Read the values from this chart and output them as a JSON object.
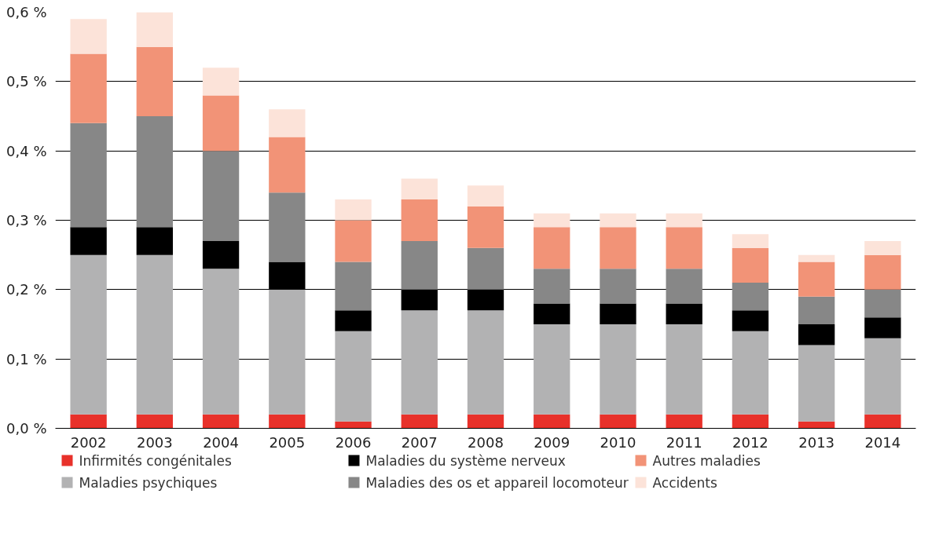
{
  "chart_data": {
    "type": "bar",
    "stacked": true,
    "categories": [
      "2002",
      "2003",
      "2004",
      "2005",
      "2006",
      "2007",
      "2008",
      "2009",
      "2010",
      "2011",
      "2012",
      "2013",
      "2014"
    ],
    "ylim": [
      0,
      0.6
    ],
    "yticks": [
      {
        "value": 0,
        "label": "0,0 %"
      },
      {
        "value": 0.1,
        "label": "0,1 %"
      },
      {
        "value": 0.2,
        "label": "0,2 %"
      },
      {
        "value": 0.3,
        "label": "0,3 %"
      },
      {
        "value": 0.4,
        "label": "0,4 %"
      },
      {
        "value": 0.5,
        "label": "0,5 %"
      },
      {
        "value": 0.6,
        "label": "0,6 %"
      }
    ],
    "grid": "y",
    "legend": "bottom",
    "series": [
      {
        "name": "Infirmités congénitales",
        "color": "#e8312a",
        "values": [
          0.02,
          0.02,
          0.02,
          0.02,
          0.01,
          0.02,
          0.02,
          0.02,
          0.02,
          0.02,
          0.02,
          0.01,
          0.02
        ]
      },
      {
        "name": "Maladies psychiques",
        "color": "#b2b2b3",
        "values": [
          0.23,
          0.23,
          0.21,
          0.18,
          0.13,
          0.15,
          0.15,
          0.13,
          0.13,
          0.13,
          0.12,
          0.11,
          0.11
        ]
      },
      {
        "name": "Maladies du système nerveux",
        "color": "#000000",
        "values": [
          0.04,
          0.04,
          0.04,
          0.04,
          0.03,
          0.03,
          0.03,
          0.03,
          0.03,
          0.03,
          0.03,
          0.03,
          0.03
        ]
      },
      {
        "name": "Maladies des os et appareil locomoteur",
        "color": "#878787",
        "values": [
          0.15,
          0.16,
          0.13,
          0.1,
          0.07,
          0.07,
          0.06,
          0.05,
          0.05,
          0.05,
          0.04,
          0.04,
          0.04
        ]
      },
      {
        "name": "Autres maladies",
        "color": "#f29377",
        "values": [
          0.1,
          0.1,
          0.08,
          0.08,
          0.06,
          0.06,
          0.06,
          0.06,
          0.06,
          0.06,
          0.05,
          0.05,
          0.05
        ]
      },
      {
        "name": "Accidents",
        "color": "#fce3d9",
        "values": [
          0.05,
          0.05,
          0.04,
          0.04,
          0.03,
          0.03,
          0.03,
          0.02,
          0.02,
          0.02,
          0.02,
          0.01,
          0.02
        ]
      }
    ]
  }
}
